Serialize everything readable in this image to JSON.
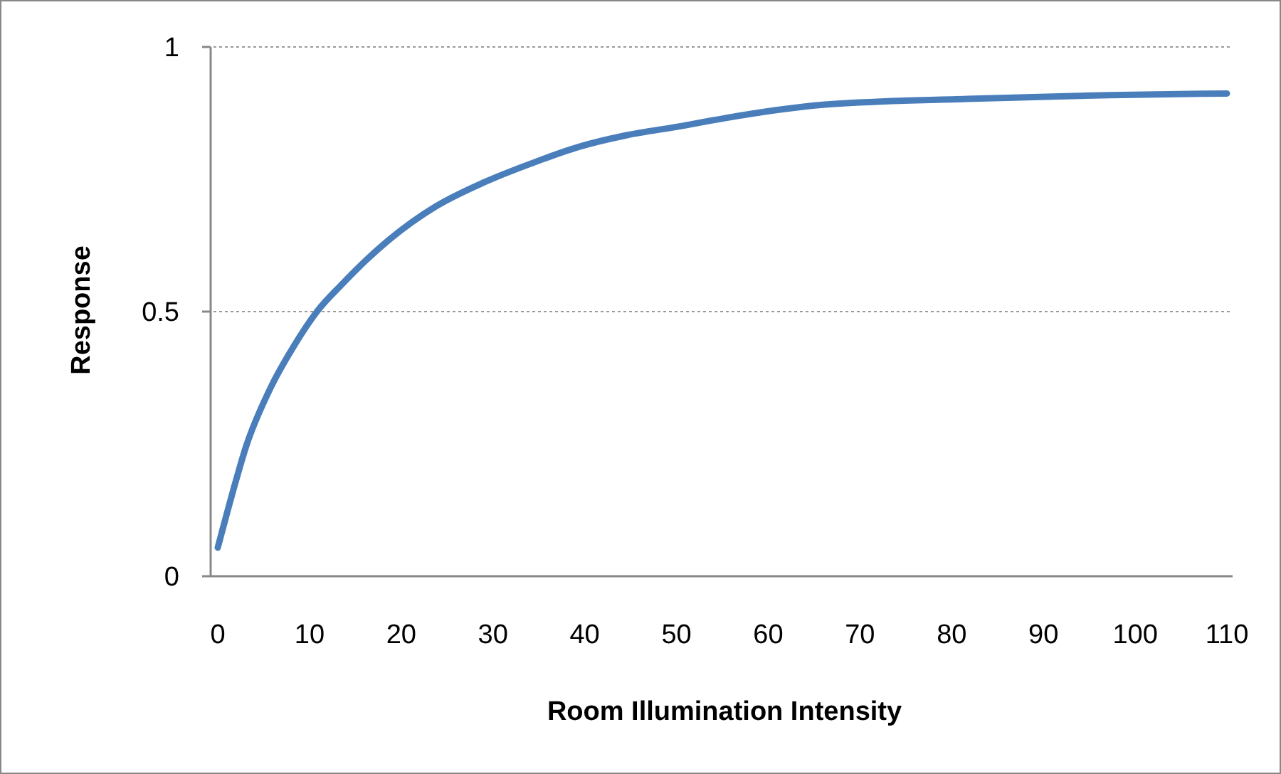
{
  "chart_data": {
    "type": "line",
    "xlabel": "Room Illumination Intensity",
    "ylabel": "Response",
    "x": [
      0,
      1.6,
      3.1,
      5.7,
      8.3,
      10.9,
      13.5,
      16.1,
      18.7,
      23.8,
      29,
      34.2,
      39.3,
      44.5,
      50.7,
      53.8,
      66.2,
      81.7,
      97.2,
      110
    ],
    "series": [
      {
        "color": "#4a7ebb",
        "values": [
          0.054,
          0.157,
          0.246,
          0.354,
          0.435,
          0.502,
          0.551,
          0.596,
          0.636,
          0.699,
          0.744,
          0.78,
          0.811,
          0.833,
          0.851,
          0.861,
          0.891,
          0.902,
          0.909,
          0.912
        ]
      }
    ],
    "xlim": [
      0,
      110
    ],
    "xticks": [
      0,
      10,
      20,
      30,
      40,
      50,
      60,
      70,
      80,
      90,
      100,
      110
    ],
    "ylim": [
      0,
      1
    ],
    "yticks": [
      0,
      0.5,
      1
    ],
    "grid": "y",
    "marker": "none",
    "line_style": "solid"
  }
}
